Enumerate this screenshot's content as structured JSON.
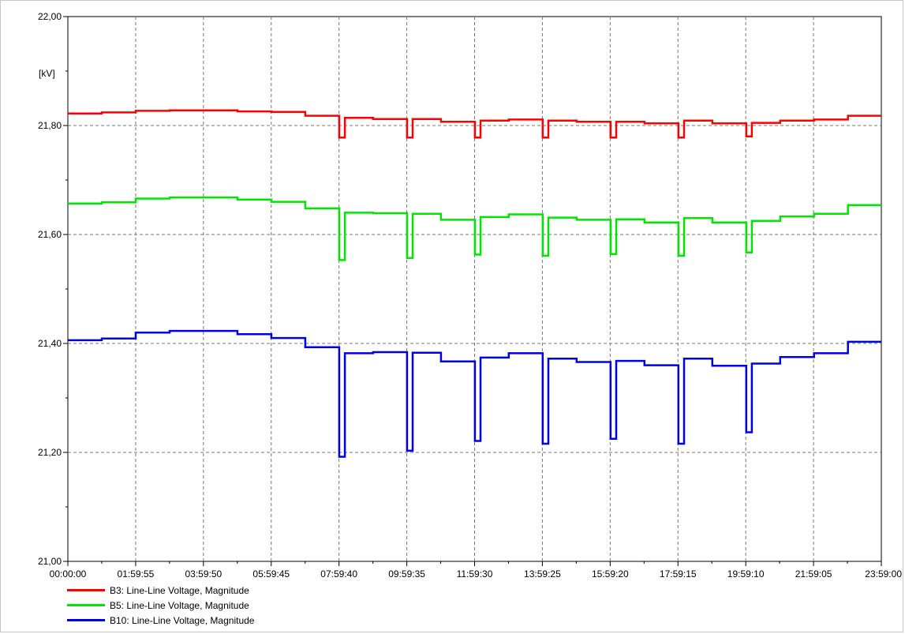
{
  "chart_data": {
    "type": "line",
    "title": "",
    "xlabel": "",
    "ylabel": "[kV]",
    "ylim": [
      21.0,
      22.0
    ],
    "xlim": [
      "00:00:00",
      "23:59:00"
    ],
    "y_ticks": [
      "21,00",
      "21,20",
      "21,40",
      "21,60",
      "21,80",
      "22,00"
    ],
    "x_ticks": [
      "00:00:00",
      "01:59:55",
      "03:59:50",
      "05:59:45",
      "07:59:40",
      "09:59:35",
      "11:59:30",
      "13:59:25",
      "15:59:20",
      "17:59:15",
      "19:59:10",
      "21:59:05",
      "23:59:00"
    ],
    "grid": true,
    "step": true,
    "legend_position": "bottom-left",
    "x": [
      "00:00:00",
      "01:00:00",
      "02:00:00",
      "03:00:00",
      "04:00:00",
      "05:00:00",
      "06:00:00",
      "07:00:00",
      "08:00:00",
      "08:10:00",
      "09:00:00",
      "10:00:00",
      "10:10:00",
      "11:00:00",
      "12:00:00",
      "12:10:00",
      "13:00:00",
      "14:00:00",
      "14:10:00",
      "15:00:00",
      "16:00:00",
      "16:10:00",
      "17:00:00",
      "18:00:00",
      "18:10:00",
      "19:00:00",
      "20:00:00",
      "20:10:00",
      "21:00:00",
      "22:00:00",
      "23:00:00",
      "23:59:00"
    ],
    "series": [
      {
        "name": "B3: Line-Line Voltage, Magnitude",
        "color": "#ff0000",
        "values": [
          21.822,
          21.824,
          21.827,
          21.828,
          21.828,
          21.826,
          21.825,
          21.818,
          21.778,
          21.814,
          21.812,
          21.778,
          21.812,
          21.807,
          21.778,
          21.809,
          21.811,
          21.778,
          21.809,
          21.807,
          21.778,
          21.807,
          21.804,
          21.778,
          21.809,
          21.804,
          21.78,
          21.805,
          21.809,
          21.811,
          21.818,
          21.818
        ]
      },
      {
        "name": "B5: Line-Line Voltage, Magnitude",
        "color": "#00e600",
        "values": [
          21.657,
          21.659,
          21.666,
          21.668,
          21.668,
          21.664,
          21.66,
          21.648,
          21.553,
          21.64,
          21.639,
          21.557,
          21.638,
          21.627,
          21.563,
          21.632,
          21.637,
          21.561,
          21.631,
          21.627,
          21.564,
          21.628,
          21.622,
          21.561,
          21.63,
          21.622,
          21.567,
          21.625,
          21.633,
          21.638,
          21.654,
          21.654
        ]
      },
      {
        "name": "B10: Line-Line Voltage, Magnitude",
        "color": "#0000e6",
        "values": [
          21.406,
          21.409,
          21.42,
          21.423,
          21.423,
          21.417,
          21.41,
          21.393,
          21.192,
          21.382,
          21.384,
          21.203,
          21.383,
          21.367,
          21.221,
          21.374,
          21.382,
          21.216,
          21.372,
          21.366,
          21.225,
          21.368,
          21.36,
          21.216,
          21.372,
          21.359,
          21.237,
          21.363,
          21.375,
          21.382,
          21.403,
          21.403
        ]
      }
    ]
  }
}
